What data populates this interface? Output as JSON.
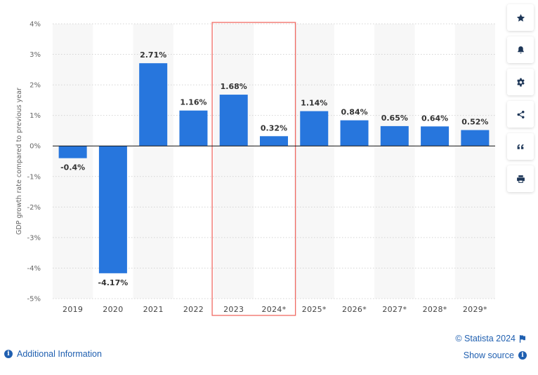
{
  "chart_data": {
    "type": "bar",
    "title": "",
    "xlabel": "",
    "ylabel": "GDP growth rate compared to previous year",
    "categories": [
      "2019",
      "2020",
      "2021",
      "2022",
      "2023",
      "2024*",
      "2025*",
      "2026*",
      "2027*",
      "2028*",
      "2029*"
    ],
    "values": [
      -0.4,
      -4.17,
      2.71,
      1.16,
      1.68,
      0.32,
      1.14,
      0.84,
      0.65,
      0.64,
      0.52
    ],
    "data_labels": [
      "-0.4%",
      "-4.17%",
      "2.71%",
      "1.16%",
      "1.68%",
      "0.32%",
      "1.14%",
      "0.84%",
      "0.65%",
      "0.64%",
      "0.52%"
    ],
    "ylim": [
      -5,
      4
    ],
    "yticks": [
      4,
      3,
      2,
      1,
      0,
      -1,
      -2,
      -3,
      -4,
      -5
    ],
    "ytick_labels": [
      "4%",
      "3%",
      "2%",
      "1%",
      "0%",
      "-1%",
      "-2%",
      "-3%",
      "-4%",
      "-5%"
    ],
    "highlighted_categories": [
      "2023",
      "2024*"
    ],
    "grid": true,
    "bar_color": "#2776dd",
    "highlight_color": "#f06b64"
  },
  "sidebar": {
    "buttons": [
      {
        "name": "favorite-button",
        "icon": "star-icon"
      },
      {
        "name": "notification-button",
        "icon": "bell-icon"
      },
      {
        "name": "settings-button",
        "icon": "gear-icon"
      },
      {
        "name": "share-button",
        "icon": "share-icon"
      },
      {
        "name": "cite-button",
        "icon": "quote-icon"
      },
      {
        "name": "print-button",
        "icon": "printer-icon"
      }
    ]
  },
  "footer": {
    "additional_info": "Additional Information",
    "credit": "© Statista 2024",
    "show_source": "Show source"
  }
}
